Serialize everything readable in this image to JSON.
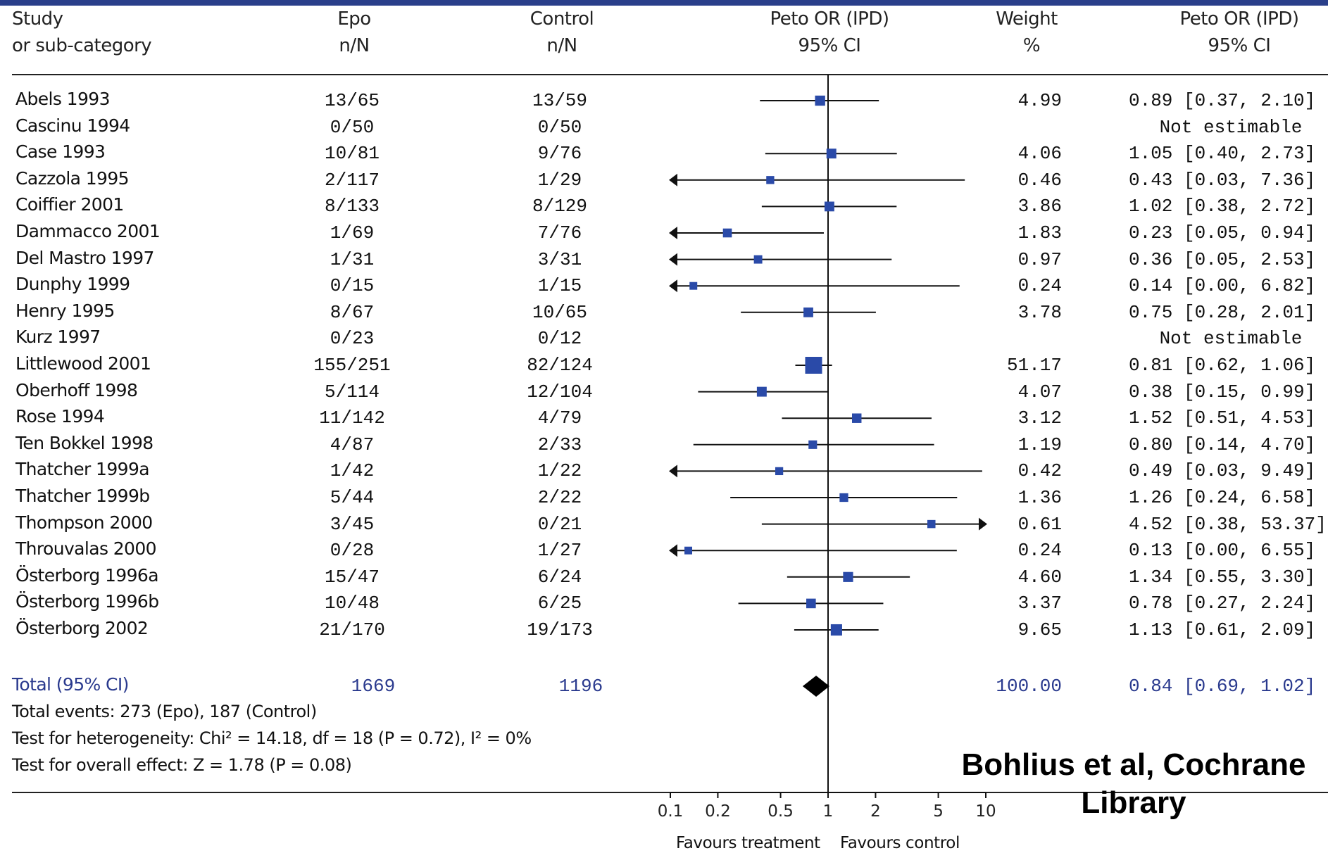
{
  "header": {
    "study": "Study",
    "subcat": "or sub-category",
    "epo": "Epo",
    "epo_sub": "n/N",
    "control": "Control",
    "control_sub": "n/N",
    "or": "Peto OR (IPD)",
    "or_sub": "95% CI",
    "weight": "Weight",
    "weight_sub": "%",
    "or2": "Peto OR (IPD)",
    "or2_sub": "95% CI"
  },
  "chart_data": {
    "type": "forest",
    "x_scale": "log",
    "xlim": [
      0.1,
      10
    ],
    "x_ticks": [
      "0.1",
      "0.2",
      "0.5",
      "1",
      "2",
      "5",
      "10"
    ],
    "x_tick_values": [
      0.1,
      0.2,
      0.5,
      1,
      2,
      5,
      10
    ],
    "favours_left": "Favours treatment",
    "favours_right": "Favours control",
    "studies": [
      {
        "study": "Abels 1993",
        "epo": "13/65",
        "control": "13/59",
        "weight": "4.99",
        "ci_text": "0.89 [0.37, 2.10]",
        "or": 0.89,
        "lo": 0.37,
        "hi": 2.1,
        "w": 4.99
      },
      {
        "study": "Cascinu 1994",
        "epo": "0/50",
        "control": "0/50",
        "weight": "",
        "ci_text": "Not estimable",
        "or": null,
        "lo": null,
        "hi": null,
        "w": null
      },
      {
        "study": "Case 1993",
        "epo": "10/81",
        "control": "9/76",
        "weight": "4.06",
        "ci_text": "1.05 [0.40, 2.73]",
        "or": 1.05,
        "lo": 0.4,
        "hi": 2.73,
        "w": 4.06
      },
      {
        "study": "Cazzola 1995",
        "epo": "2/117",
        "control": "1/29",
        "weight": "0.46",
        "ci_text": "0.43 [0.03, 7.36]",
        "or": 0.43,
        "lo": 0.03,
        "hi": 7.36,
        "w": 0.46
      },
      {
        "study": "Coiffier 2001",
        "epo": "8/133",
        "control": "8/129",
        "weight": "3.86",
        "ci_text": "1.02 [0.38, 2.72]",
        "or": 1.02,
        "lo": 0.38,
        "hi": 2.72,
        "w": 3.86
      },
      {
        "study": "Dammacco 2001",
        "epo": "1/69",
        "control": "7/76",
        "weight": "1.83",
        "ci_text": "0.23 [0.05, 0.94]",
        "or": 0.23,
        "lo": 0.05,
        "hi": 0.94,
        "w": 1.83
      },
      {
        "study": "Del Mastro 1997",
        "epo": "1/31",
        "control": "3/31",
        "weight": "0.97",
        "ci_text": "0.36 [0.05, 2.53]",
        "or": 0.36,
        "lo": 0.05,
        "hi": 2.53,
        "w": 0.97
      },
      {
        "study": "Dunphy 1999",
        "epo": "0/15",
        "control": "1/15",
        "weight": "0.24",
        "ci_text": "0.14 [0.00, 6.82]",
        "or": 0.14,
        "lo": 0.0,
        "hi": 6.82,
        "w": 0.24
      },
      {
        "study": "Henry 1995",
        "epo": "8/67",
        "control": "10/65",
        "weight": "3.78",
        "ci_text": "0.75 [0.28, 2.01]",
        "or": 0.75,
        "lo": 0.28,
        "hi": 2.01,
        "w": 3.78
      },
      {
        "study": "Kurz 1997",
        "epo": "0/23",
        "control": "0/12",
        "weight": "",
        "ci_text": "Not estimable",
        "or": null,
        "lo": null,
        "hi": null,
        "w": null
      },
      {
        "study": "Littlewood 2001",
        "epo": "155/251",
        "control": "82/124",
        "weight": "51.17",
        "ci_text": "0.81 [0.62, 1.06]",
        "or": 0.81,
        "lo": 0.62,
        "hi": 1.06,
        "w": 51.17
      },
      {
        "study": "Oberhoff 1998",
        "epo": "5/114",
        "control": "12/104",
        "weight": "4.07",
        "ci_text": "0.38 [0.15, 0.99]",
        "or": 0.38,
        "lo": 0.15,
        "hi": 0.99,
        "w": 4.07
      },
      {
        "study": "Rose 1994",
        "epo": "11/142",
        "control": "4/79",
        "weight": "3.12",
        "ci_text": "1.52 [0.51, 4.53]",
        "or": 1.52,
        "lo": 0.51,
        "hi": 4.53,
        "w": 3.12
      },
      {
        "study": "Ten Bokkel 1998",
        "epo": "4/87",
        "control": "2/33",
        "weight": "1.19",
        "ci_text": "0.80 [0.14, 4.70]",
        "or": 0.8,
        "lo": 0.14,
        "hi": 4.7,
        "w": 1.19
      },
      {
        "study": "Thatcher 1999a",
        "epo": "1/42",
        "control": "1/22",
        "weight": "0.42",
        "ci_text": "0.49 [0.03, 9.49]",
        "or": 0.49,
        "lo": 0.03,
        "hi": 9.49,
        "w": 0.42
      },
      {
        "study": "Thatcher 1999b",
        "epo": "5/44",
        "control": "2/22",
        "weight": "1.36",
        "ci_text": "1.26 [0.24, 6.58]",
        "or": 1.26,
        "lo": 0.24,
        "hi": 6.58,
        "w": 1.36
      },
      {
        "study": "Thompson 2000",
        "epo": "3/45",
        "control": "0/21",
        "weight": "0.61",
        "ci_text": "4.52 [0.38, 53.37]",
        "or": 4.52,
        "lo": 0.38,
        "hi": 53.37,
        "w": 0.61
      },
      {
        "study": "Throuvalas 2000",
        "epo": "0/28",
        "control": "1/27",
        "weight": "0.24",
        "ci_text": "0.13 [0.00, 6.55]",
        "or": 0.13,
        "lo": 0.0,
        "hi": 6.55,
        "w": 0.24
      },
      {
        "study": "Österborg 1996a",
        "epo": "15/47",
        "control": "6/24",
        "weight": "4.60",
        "ci_text": "1.34 [0.55, 3.30]",
        "or": 1.34,
        "lo": 0.55,
        "hi": 3.3,
        "w": 4.6
      },
      {
        "study": "Österborg 1996b",
        "epo": "10/48",
        "control": "6/25",
        "weight": "3.37",
        "ci_text": "0.78 [0.27, 2.24]",
        "or": 0.78,
        "lo": 0.27,
        "hi": 2.24,
        "w": 3.37
      },
      {
        "study": "Österborg 2002",
        "epo": "21/170",
        "control": "19/173",
        "weight": "9.65",
        "ci_text": "1.13 [0.61, 2.09]",
        "or": 1.13,
        "lo": 0.61,
        "hi": 2.09,
        "w": 9.65
      }
    ],
    "total": {
      "label": "Total (95% CI)",
      "epo": "1669",
      "control": "1196",
      "weight": "100.00",
      "ci_text": "0.84 [0.69, 1.02]",
      "or": 0.84,
      "lo": 0.69,
      "hi": 1.02
    }
  },
  "footer": {
    "events": "Total events: 273 (Epo), 187 (Control)",
    "heterogeneity": "Test for heterogeneity: Chi² = 14.18, df = 18 (P = 0.72), I² = 0%",
    "overall": "Test for overall effect: Z = 1.78 (P = 0.08)"
  },
  "source": {
    "line1": "Bohlius et al, Cochrane",
    "line2": "Library"
  },
  "colors": {
    "marker": "#2a4aa8",
    "total_text": "#2a3a8e",
    "topbar": "#2a3f8a"
  }
}
